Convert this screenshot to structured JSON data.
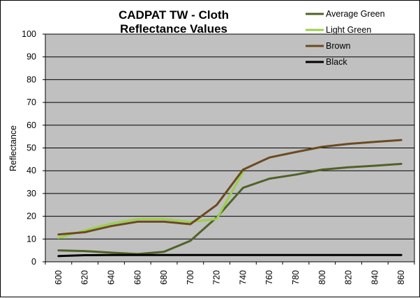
{
  "chart_data": {
    "type": "line",
    "title_line1": "CADPAT TW - Cloth",
    "title_line2": "Reflectance Values",
    "xlabel": "",
    "ylabel": "Reflectance",
    "ylim": [
      0,
      100
    ],
    "y_ticks": [
      "0",
      "10",
      "20",
      "30",
      "40",
      "50",
      "60",
      "70",
      "80",
      "90",
      "100"
    ],
    "x": [
      "600",
      "620",
      "640",
      "660",
      "680",
      "700",
      "720",
      "740",
      "760",
      "780",
      "800",
      "820",
      "840",
      "860"
    ],
    "grid": "horizontal",
    "legend_position": "top-right",
    "plot_background": "#c0c0c0",
    "series": [
      {
        "name": "Average Green",
        "color": "#4f6228",
        "values": [
          5,
          4.7,
          4,
          3.4,
          4.4,
          9.2,
          19.5,
          32.5,
          36.5,
          38.3,
          40.5,
          41.5,
          42.2,
          43
        ]
      },
      {
        "name": "Light Green",
        "color": "#9bd04a",
        "values": [
          10.5,
          13.8,
          16.8,
          18.8,
          18.8,
          17.5,
          18.8,
          39.5,
          null,
          null,
          null,
          null,
          null,
          null
        ]
      },
      {
        "name": "Brown",
        "color": "#6b4a1f",
        "values": [
          12,
          13,
          15.7,
          17.6,
          17.6,
          16.5,
          25,
          40.5,
          45.8,
          48.2,
          50.5,
          51.8,
          52.7,
          53.5
        ]
      },
      {
        "name": "Black",
        "color": "#000000",
        "values": [
          2.5,
          2.9,
          3,
          3,
          3,
          3,
          3,
          3,
          3,
          3,
          3,
          3,
          3,
          3
        ]
      }
    ]
  }
}
